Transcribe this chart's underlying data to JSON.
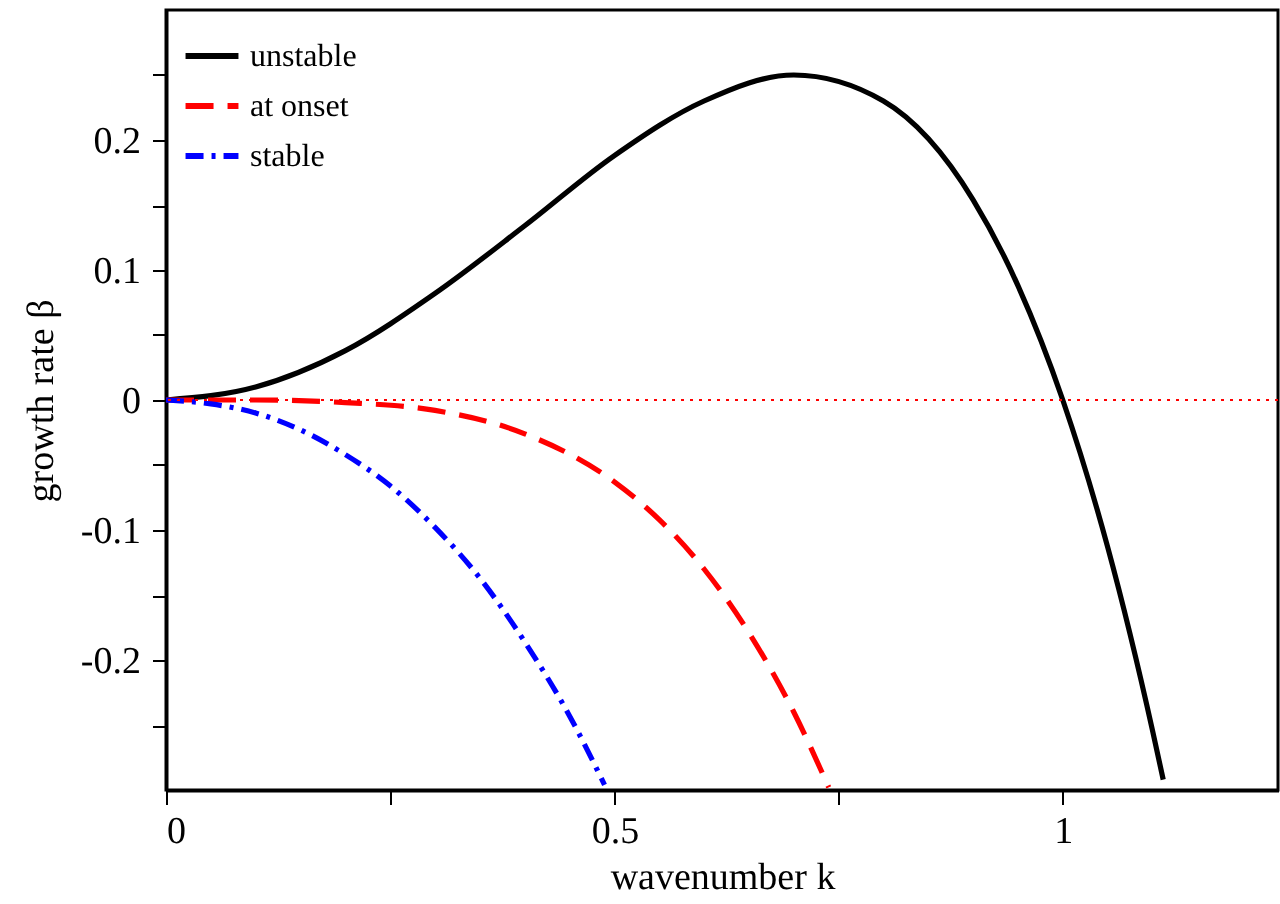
{
  "chart_data": {
    "type": "line",
    "xlabel": "wavenumber k",
    "ylabel": "growth rate β",
    "xlim": [
      0,
      1.24
    ],
    "ylim": [
      -0.3,
      0.3
    ],
    "xticks": [
      0,
      {
        "value": 0.25,
        "label": null
      },
      {
        "value": 0.5,
        "label": "0.5"
      },
      {
        "value": 0.75,
        "label": null
      },
      1
    ],
    "yticks": [
      {
        "value": -0.25,
        "label": null
      },
      {
        "value": -0.2,
        "label": "-0.2"
      },
      {
        "value": -0.15,
        "label": null
      },
      {
        "value": -0.1,
        "label": "-0.1"
      },
      {
        "value": -0.05,
        "label": null
      },
      0,
      {
        "value": 0.05,
        "label": null
      },
      {
        "value": 0.1,
        "label": "0.1"
      },
      {
        "value": 0.15,
        "label": null
      },
      {
        "value": 0.2,
        "label": "0.2"
      },
      {
        "value": 0.25,
        "label": null
      }
    ],
    "legend": "top left",
    "grid": false,
    "marker": "none",
    "series": [
      {
        "name": "unstable",
        "color": "#000000",
        "line_style": "solid",
        "x": [
          0,
          0.1,
          0.2,
          0.3,
          0.4,
          0.5,
          0.6,
          0.7,
          0.8,
          0.9,
          0.95,
          1.0,
          1.05,
          1.1,
          1.112
        ],
        "values": [
          0,
          0.01,
          0.038,
          0.082,
          0.134,
          0.188,
          0.23,
          0.25,
          0.23,
          0.154,
          0.088,
          0,
          -0.113,
          -0.254,
          -0.292
        ]
      },
      {
        "name": "at onset",
        "color": "#ff0000",
        "line_style": "dashed",
        "x": [
          0,
          0.1,
          0.2,
          0.3,
          0.4,
          0.5,
          0.55,
          0.6,
          0.65,
          0.7,
          0.739
        ],
        "values": [
          0,
          0,
          -0.002,
          -0.008,
          -0.026,
          -0.063,
          -0.092,
          -0.13,
          -0.179,
          -0.24,
          -0.298
        ]
      },
      {
        "name": "stable",
        "color": "#0000ff",
        "line_style": "dashdot",
        "x": [
          0,
          0.05,
          0.1,
          0.15,
          0.2,
          0.25,
          0.3,
          0.35,
          0.4,
          0.45,
          0.489
        ],
        "values": [
          0,
          -0.003,
          -0.01,
          -0.023,
          -0.042,
          -0.066,
          -0.098,
          -0.137,
          -0.186,
          -0.243,
          -0.296
        ]
      }
    ],
    "ref_lines": [
      {
        "axis": "y",
        "value": 0,
        "color": "#ff0000",
        "line_style": "dotted"
      }
    ]
  }
}
